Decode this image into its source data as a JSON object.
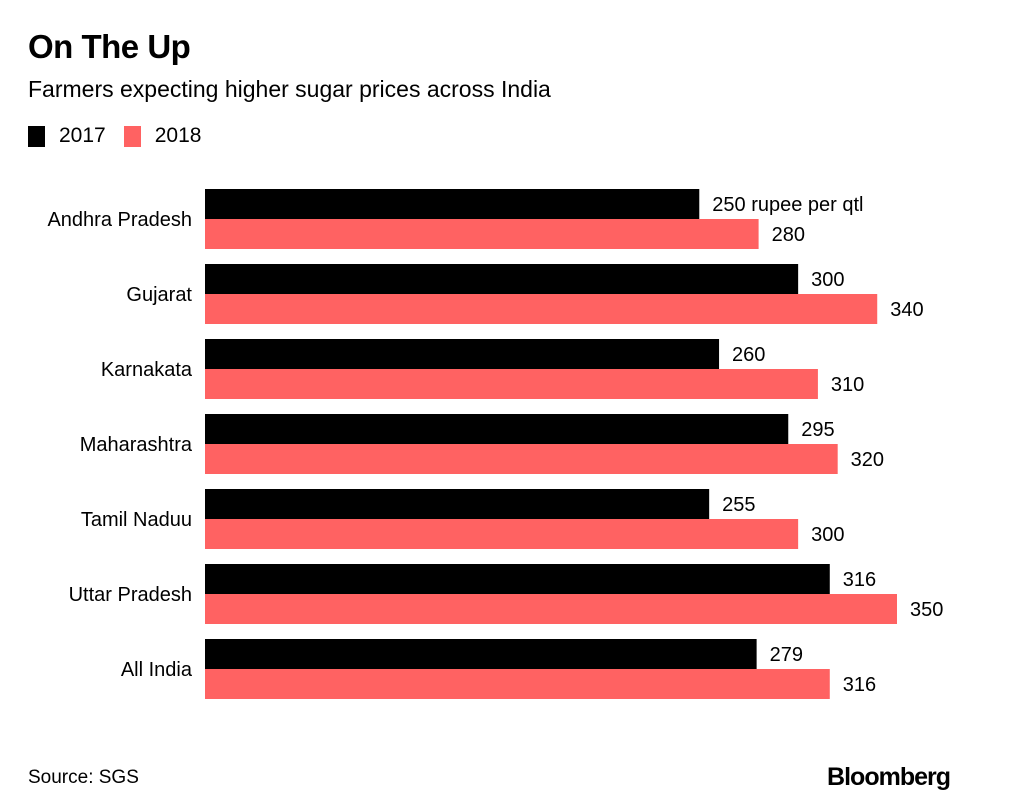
{
  "chart_data": {
    "type": "bar",
    "orientation": "horizontal",
    "title": "On The Up",
    "subtitle": "Farmers expecting higher sugar prices across India",
    "xlabel": "",
    "ylabel": "",
    "unit_note": "rupee per qtl",
    "categories": [
      "Andhra Pradesh",
      "Gujarat",
      "Karnakata",
      "Maharashtra",
      "Tamil Naduu",
      "Uttar Pradesh",
      "All India"
    ],
    "series": [
      {
        "name": "2017",
        "color": "#000000",
        "values": [
          250,
          300,
          260,
          295,
          255,
          316,
          279
        ]
      },
      {
        "name": "2018",
        "color": "#FF6262",
        "values": [
          280,
          340,
          310,
          320,
          300,
          350,
          316
        ]
      }
    ],
    "data_labels": {
      "2017": [
        "250 rupee per qtl",
        "300",
        "260",
        "295",
        "255",
        "316",
        "279"
      ],
      "2018": [
        "280",
        "340",
        "310",
        "320",
        "300",
        "350",
        "316"
      ]
    },
    "xlim": [
      0,
      350
    ],
    "grid": false,
    "legend_position": "top-left",
    "source": "Source: SGS",
    "brand": "Bloomberg"
  }
}
